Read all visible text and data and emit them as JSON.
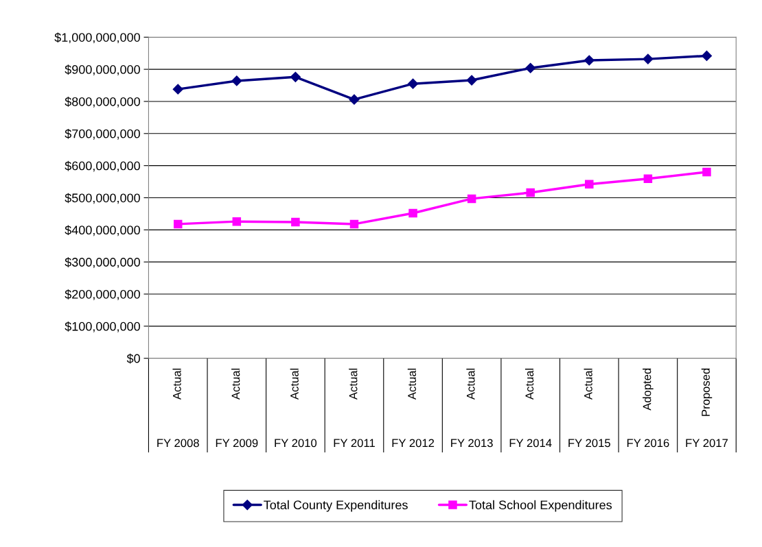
{
  "chart_data": {
    "type": "line",
    "categories": [
      "Actual\nFY 2008",
      "Actual\nFY 2009",
      "Actual\nFY 2010",
      "Actual\nFY 2011",
      "Actual\nFY 2012",
      "Actual\nFY 2013",
      "Actual\nFY 2014",
      "Actual\nFY 2015",
      "Adopted\nFY 2016",
      "Proposed\nFY 2017"
    ],
    "series": [
      {
        "name": "Total County Expenditures",
        "color": "#000080",
        "marker": "diamond",
        "values": [
          838000000,
          864000000,
          876000000,
          806000000,
          855000000,
          866000000,
          904000000,
          928000000,
          932000000,
          942000000
        ]
      },
      {
        "name": "Total School Expenditures",
        "color": "#ff00ff",
        "marker": "square",
        "values": [
          418000000,
          426000000,
          424000000,
          418000000,
          452000000,
          497000000,
          516000000,
          542000000,
          559000000,
          580000000
        ]
      }
    ],
    "ylim": [
      0,
      1000000000
    ],
    "yticks": [
      {
        "value": 0,
        "label": "$0"
      },
      {
        "value": 100000000,
        "label": "$100,000,000"
      },
      {
        "value": 200000000,
        "label": "$200,000,000"
      },
      {
        "value": 300000000,
        "label": "$300,000,000"
      },
      {
        "value": 400000000,
        "label": "$400,000,000"
      },
      {
        "value": 500000000,
        "label": "$500,000,000"
      },
      {
        "value": 600000000,
        "label": "$600,000,000"
      },
      {
        "value": 700000000,
        "label": "$700,000,000"
      },
      {
        "value": 800000000,
        "label": "$800,000,000"
      },
      {
        "value": 900000000,
        "label": "$900,000,000"
      },
      {
        "value": 1000000000,
        "label": "$1,000,000,000"
      }
    ],
    "grid": "y",
    "legend": "bottom",
    "line_style": "solid"
  }
}
